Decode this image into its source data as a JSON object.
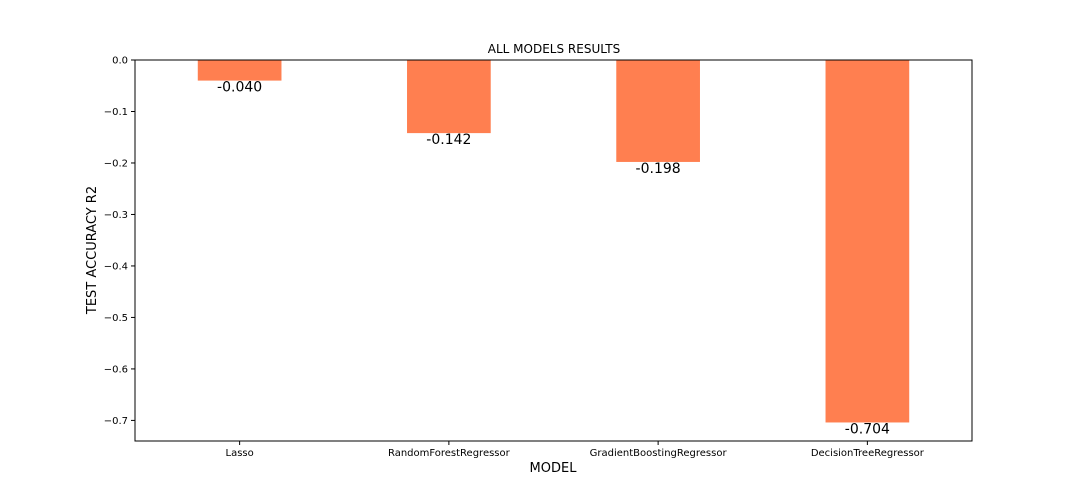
{
  "chart_data": {
    "type": "bar",
    "title": "ALL MODELS RESULTS",
    "xlabel": "MODEL",
    "ylabel": "TEST ACCURACY R2",
    "categories": [
      "Lasso",
      "RandomForestRegressor",
      "GradientBoostingRegressor",
      "DecisionTreeRegressor"
    ],
    "values": [
      -0.04,
      -0.142,
      -0.198,
      -0.704
    ],
    "data_labels": [
      "-0.040",
      "-0.142",
      "-0.198",
      "-0.704"
    ],
    "ylim": [
      -0.74,
      0.0
    ],
    "yticks": [
      0.0,
      -0.1,
      -0.2,
      -0.3,
      -0.4,
      -0.5,
      -0.6,
      -0.7
    ],
    "ytick_labels": [
      "0.0",
      "−0.1",
      "−0.2",
      "−0.3",
      "−0.4",
      "−0.5",
      "−0.6",
      "−0.7"
    ],
    "bar_color": "#ff7f50",
    "grid": false,
    "legend": "none"
  }
}
